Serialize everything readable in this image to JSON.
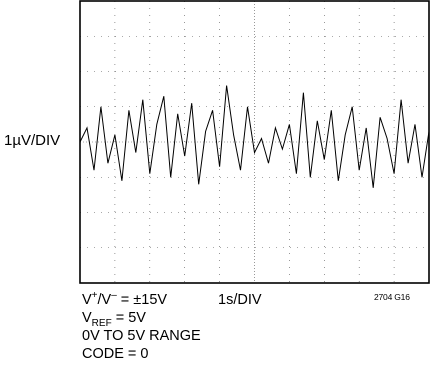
{
  "chart_data": {
    "type": "line",
    "ylabel": "1µV/DIV",
    "xlabel": "1s/DIV",
    "figure_id": "2704 G16",
    "grid": true,
    "divisions": {
      "x": 10,
      "y": 8
    },
    "series": [
      {
        "x": [
          0,
          0.2,
          0.4,
          0.6,
          0.8,
          1.0,
          1.2,
          1.4,
          1.6,
          1.8,
          2.0,
          2.2,
          2.4,
          2.6,
          2.8,
          3.0,
          3.2,
          3.4,
          3.6,
          3.8,
          4.0,
          4.2,
          4.4,
          4.6,
          4.8,
          5.0,
          5.2,
          5.4,
          5.6,
          5.8,
          6.0,
          6.2,
          6.4,
          6.6,
          6.8,
          7.0,
          7.2,
          7.4,
          7.6,
          7.8,
          8.0,
          8.2,
          8.4,
          8.6,
          8.8,
          9.0,
          9.2,
          9.4,
          9.6,
          9.8,
          10.0
        ],
        "y": [
          0.0,
          0.4,
          -0.8,
          1.0,
          -0.6,
          0.2,
          -1.1,
          0.9,
          -0.3,
          1.2,
          -0.9,
          0.5,
          1.3,
          -1.0,
          0.8,
          -0.4,
          1.1,
          -1.2,
          0.3,
          0.9,
          -0.7,
          1.6,
          0.2,
          -0.8,
          1.0,
          -0.3,
          0.1,
          -0.6,
          0.4,
          -0.2,
          0.5,
          -0.9,
          1.4,
          -1.0,
          0.6,
          -0.5,
          0.9,
          -1.1,
          0.2,
          1.0,
          -0.8,
          0.4,
          -1.3,
          0.7,
          0.1,
          -0.9,
          1.2,
          -0.6,
          0.5,
          -1.0,
          0.3
        ]
      }
    ]
  },
  "conditions": {
    "supply_prefix": "V",
    "supply_plus": "+",
    "supply_mid": "/V",
    "supply_minus": "–",
    "supply_value": " = ±15V",
    "vref_prefix": "V",
    "vref_sub": "REF",
    "vref_value": " = 5V",
    "range": "0V TO 5V RANGE",
    "code": "CODE = 0"
  }
}
